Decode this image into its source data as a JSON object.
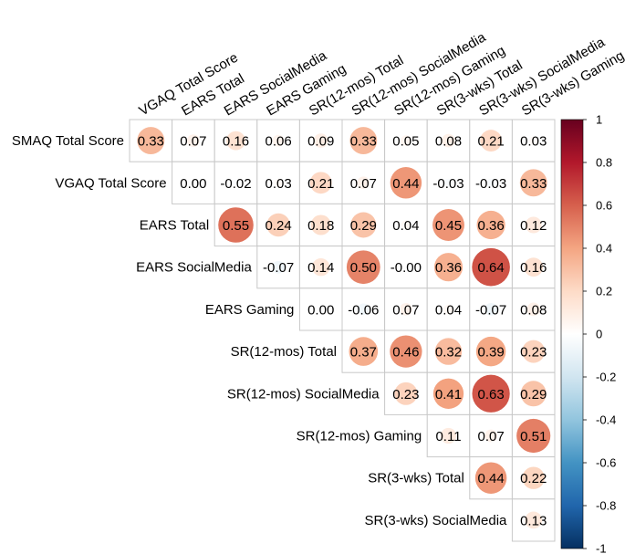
{
  "chart_data": {
    "type": "heatmap",
    "style": "upper-triangle circle correlation plot",
    "row_labels": [
      "SMAQ Total Score",
      "VGAQ Total Score",
      "EARS Total",
      "EARS SocialMedia",
      "EARS Gaming",
      "SR(12-mos) Total",
      "SR(12-mos) SocialMedia",
      "SR(12-mos) Gaming",
      "SR(3-wks) Total",
      "SR(3-wks) SocialMedia"
    ],
    "col_labels": [
      "VGAQ Total Score",
      "EARS Total",
      "EARS SocialMedia",
      "EARS Gaming",
      "SR(12-mos) Total",
      "SR(12-mos) SocialMedia",
      "SR(12-mos) Gaming",
      "SR(3-wks) Total",
      "SR(3-wks) SocialMedia",
      "SR(3-wks) Gaming"
    ],
    "values": [
      [
        "0.33",
        "0.07",
        "0.16",
        "0.06",
        "0.09",
        "0.33",
        "0.05",
        "0.08",
        "0.21",
        "0.03"
      ],
      [
        "0.00",
        "-0.02",
        "0.03",
        "0.21",
        "0.07",
        "0.44",
        "-0.03",
        "-0.03",
        "0.33"
      ],
      [
        "0.55",
        "0.24",
        "0.18",
        "0.29",
        "0.04",
        "0.45",
        "0.36",
        "0.12"
      ],
      [
        "-0.07",
        "0.14",
        "0.50",
        "-0.00",
        "0.36",
        "0.64",
        "0.16"
      ],
      [
        "0.00",
        "-0.06",
        "0.07",
        "0.04",
        "-0.07",
        "0.08"
      ],
      [
        "0.37",
        "0.46",
        "0.32",
        "0.39",
        "0.23"
      ],
      [
        "0.23",
        "0.41",
        "0.63",
        "0.29"
      ],
      [
        "0.11",
        "0.07",
        "0.51"
      ],
      [
        "0.44",
        "0.22"
      ],
      [
        "0.13"
      ]
    ],
    "colorbar": {
      "range": [
        -1,
        1
      ],
      "ticks": [
        "1",
        "0.8",
        "0.6",
        "0.4",
        "0.2",
        "0",
        "-0.2",
        "-0.4",
        "-0.6",
        "-0.8",
        "-1"
      ],
      "colors": [
        "#67001f",
        "#b2182b",
        "#d6604d",
        "#f4a582",
        "#fddbc7",
        "#ffffff",
        "#d1e5f0",
        "#92c5de",
        "#4393c3",
        "#2166ac",
        "#053061"
      ]
    }
  }
}
